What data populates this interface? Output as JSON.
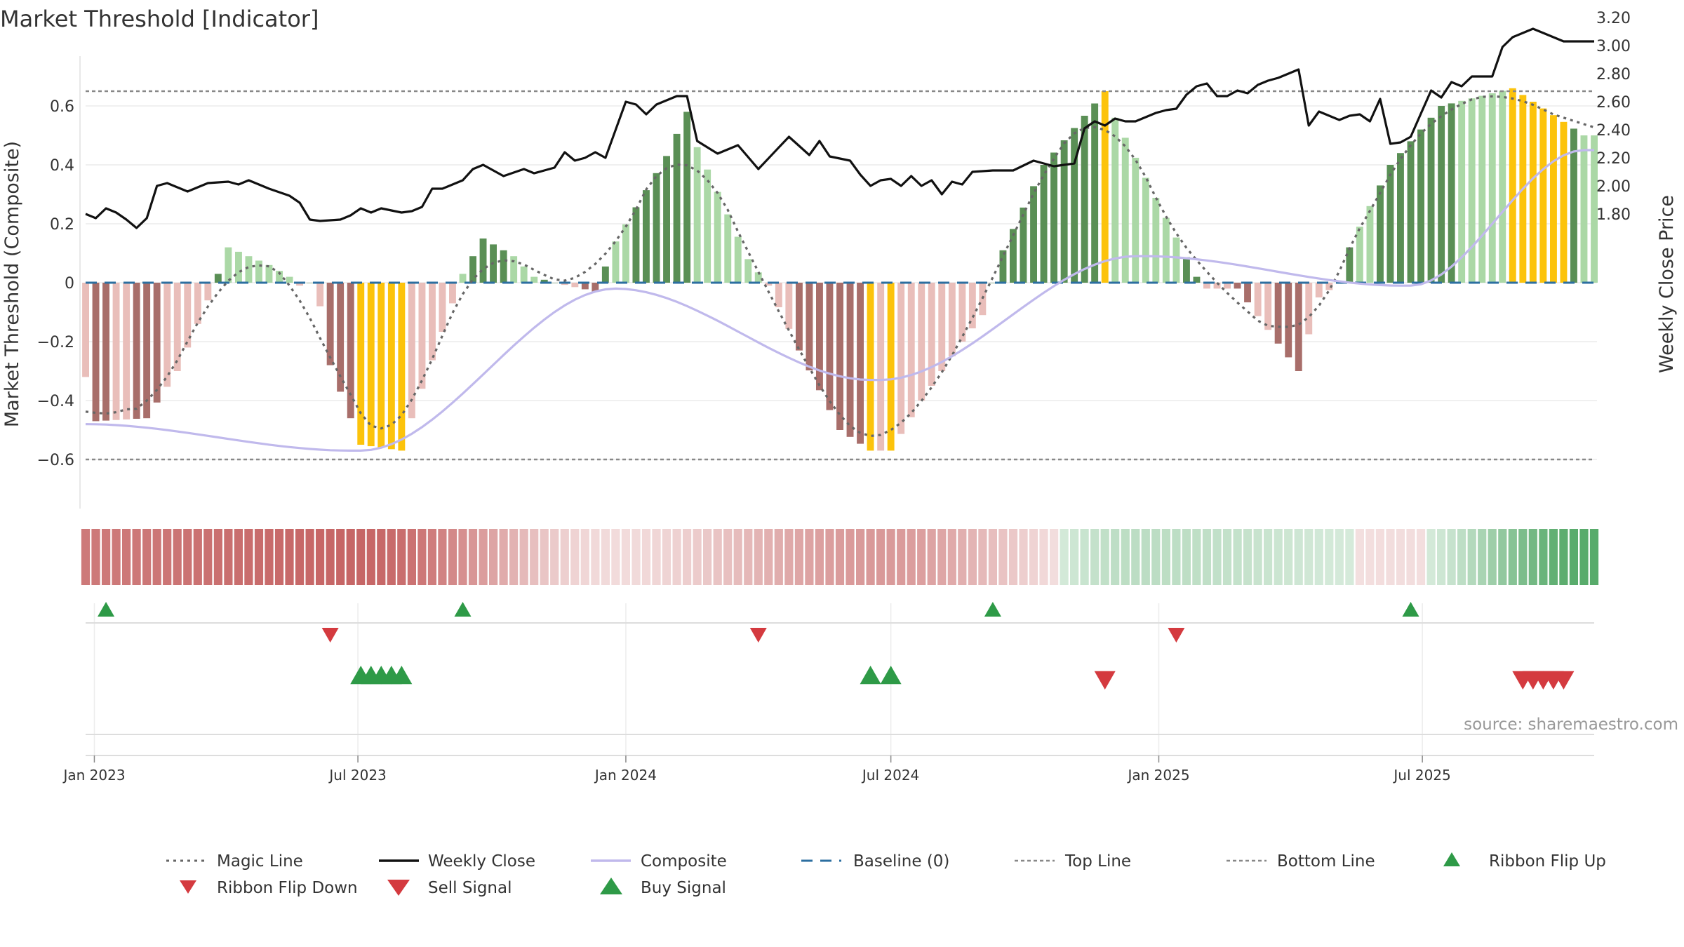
{
  "colors": {
    "dark_green": "#5a8f55",
    "light_green": "#abd8a6",
    "dark_red": "#a86e6a",
    "light_red": "#e9beba",
    "gold": "#fcc30b",
    "close_line": "#111111",
    "composite_line": "#c0b9ec",
    "magic_line": "#666666",
    "baseline": "#2c6fa0",
    "buy": "#2e9a47",
    "sell": "#d43a3f"
  },
  "chart_data": {
    "type": "bar",
    "title": "Market Threshold [Indicator]",
    "ylabel_left": "Market Threshold (Composite)",
    "ylabel_right": "Weekly Close Price",
    "ylim_left": [
      -0.77,
      0.77
    ],
    "ylim_right": [
      1.67,
      3.23
    ],
    "yticks_left": [
      {
        "v": 0.6,
        "label": "0.6"
      },
      {
        "v": 0.4,
        "label": "0.4"
      },
      {
        "v": 0.2,
        "label": "0.2"
      },
      {
        "v": 0,
        "label": "0"
      },
      {
        "v": -0.2,
        "label": "−0.2"
      },
      {
        "v": -0.4,
        "label": "−0.4"
      },
      {
        "v": -0.6,
        "label": "−0.6"
      }
    ],
    "yticks_right": [
      {
        "v": 3.2,
        "label": "3.20"
      },
      {
        "v": 3.0,
        "label": "3.00"
      },
      {
        "v": 2.8,
        "label": "2.80"
      },
      {
        "v": 2.6,
        "label": "2.60"
      },
      {
        "v": 2.4,
        "label": "2.40"
      },
      {
        "v": 2.2,
        "label": "2.20"
      },
      {
        "v": 2.0,
        "label": "2.00"
      },
      {
        "v": 1.8,
        "label": "1.80"
      }
    ],
    "xticks": [
      "Jan 2023",
      "Jul 2023",
      "Jan 2024",
      "Jul 2024",
      "Jan 2025",
      "Jul 2025"
    ],
    "top_line": 0.65,
    "bottom_line": -0.6,
    "baseline": 0,
    "composite_segments": [
      {
        "start": "2022-12-26",
        "n": 27,
        "start_value": -0.48,
        "end_value": -0.57
      },
      {
        "start": "2023-07-03",
        "n": 26,
        "start_value": -0.57,
        "end_value": -0.02
      },
      {
        "start": "2023-12-25",
        "n": 26,
        "start_value": -0.02,
        "end_value": -0.33
      },
      {
        "start": "2024-06-24",
        "n": 26,
        "start_value": -0.33,
        "end_value": 0.09
      },
      {
        "start": "2024-12-23",
        "n": 26,
        "start_value": 0.09,
        "end_value": -0.01
      },
      {
        "start": "2025-06-23",
        "n": 18,
        "start_value": -0.01,
        "end_value": 0.45
      }
    ],
    "histogram_knots": [
      {
        "date": "2022-12-26",
        "value": -0.32
      },
      {
        "date": "2023-01-02",
        "value": -0.47
      },
      {
        "date": "2023-02-06",
        "value": -0.46
      },
      {
        "date": "2023-02-27",
        "value": -0.3
      },
      {
        "date": "2023-03-20",
        "value": -0.06
      },
      {
        "date": "2023-04-03",
        "value": 0.12
      },
      {
        "date": "2023-05-01",
        "value": 0.06
      },
      {
        "date": "2023-05-15",
        "value": 0.02
      },
      {
        "date": "2023-05-22",
        "value": -0.01
      },
      {
        "date": "2023-05-29",
        "value": 0.0
      },
      {
        "date": "2023-06-05",
        "value": -0.08
      },
      {
        "date": "2023-06-12",
        "value": -0.28
      },
      {
        "date": "2023-07-03",
        "value": -0.55
      },
      {
        "date": "2023-07-31",
        "value": -0.57
      },
      {
        "date": "2023-08-07",
        "value": -0.46
      },
      {
        "date": "2023-08-14",
        "value": -0.36
      },
      {
        "date": "2023-09-04",
        "value": -0.07
      },
      {
        "date": "2023-09-11",
        "value": 0.03
      },
      {
        "date": "2023-09-25",
        "value": 0.15
      },
      {
        "date": "2023-10-16",
        "value": 0.09
      },
      {
        "date": "2023-10-30",
        "value": 0.02
      },
      {
        "date": "2023-11-13",
        "value": 0.0
      },
      {
        "date": "2023-12-11",
        "value": -0.03
      },
      {
        "date": "2023-12-25",
        "value": 0.14
      },
      {
        "date": "2024-01-29",
        "value": 0.43
      },
      {
        "date": "2024-02-12",
        "value": 0.58
      },
      {
        "date": "2024-02-19",
        "value": 0.46
      },
      {
        "date": "2024-03-25",
        "value": 0.08
      },
      {
        "date": "2024-04-08",
        "value": -0.01
      },
      {
        "date": "2024-04-29",
        "value": -0.23
      },
      {
        "date": "2024-05-27",
        "value": -0.5
      },
      {
        "date": "2024-06-17",
        "value": -0.57
      },
      {
        "date": "2024-07-01",
        "value": -0.57
      },
      {
        "date": "2024-07-22",
        "value": -0.4
      },
      {
        "date": "2024-08-19",
        "value": -0.2
      },
      {
        "date": "2024-09-02",
        "value": -0.11
      },
      {
        "date": "2024-09-09",
        "value": 0.0
      },
      {
        "date": "2024-09-16",
        "value": 0.11
      },
      {
        "date": "2024-10-14",
        "value": 0.4
      },
      {
        "date": "2024-11-25",
        "value": 0.65
      },
      {
        "date": "2024-12-02",
        "value": 0.56
      },
      {
        "date": "2025-01-06",
        "value": 0.22
      },
      {
        "date": "2025-01-27",
        "value": 0.02
      },
      {
        "date": "2025-02-03",
        "value": -0.02
      },
      {
        "date": "2025-02-24",
        "value": -0.02
      },
      {
        "date": "2025-04-07",
        "value": -0.3
      },
      {
        "date": "2025-04-21",
        "value": -0.05
      },
      {
        "date": "2025-05-05",
        "value": 0.0
      },
      {
        "date": "2025-05-12",
        "value": 0.12
      },
      {
        "date": "2025-06-09",
        "value": 0.4
      },
      {
        "date": "2025-07-14",
        "value": 0.6
      },
      {
        "date": "2025-09-01",
        "value": 0.66
      },
      {
        "date": "2025-10-20",
        "value": 0.5
      }
    ],
    "gold_bars": [
      "2023-07-03",
      "2023-07-10",
      "2023-07-17",
      "2023-07-24",
      "2023-07-31",
      "2024-06-17",
      "2024-07-01",
      "2024-11-25",
      "2025-09-01",
      "2025-09-08",
      "2025-09-15",
      "2025-09-22",
      "2025-09-29",
      "2025-10-06"
    ],
    "light_green_bars": [
      "2024-02-19",
      "2024-02-26",
      "2024-03-04",
      "2024-03-11",
      "2024-03-18",
      "2024-03-25",
      "2024-04-01",
      "2024-12-02",
      "2024-12-09",
      "2024-12-16",
      "2024-12-23",
      "2024-12-30",
      "2025-01-06",
      "2025-01-13",
      "2025-07-28",
      "2025-08-04",
      "2025-08-11",
      "2025-08-18",
      "2025-08-25",
      "2025-10-20",
      "2025-10-27",
      "2023-04-03",
      "2023-04-10",
      "2023-04-17",
      "2023-04-24",
      "2023-05-01",
      "2023-05-08",
      "2023-05-15",
      "2023-09-11",
      "2023-10-16",
      "2023-10-23",
      "2023-10-30",
      "2023-12-25",
      "2024-01-01",
      "2025-05-19",
      "2025-05-26"
    ],
    "dark_red_bars": [
      "2023-01-02",
      "2023-01-09",
      "2023-01-30",
      "2023-02-06",
      "2023-02-13",
      "2023-06-12",
      "2023-06-19",
      "2023-06-26",
      "2023-07-03",
      "2023-12-04",
      "2023-12-11",
      "2024-04-29",
      "2024-05-06",
      "2024-05-13",
      "2024-05-20",
      "2024-05-27",
      "2024-06-03",
      "2024-06-10",
      "2025-02-24",
      "2025-03-03",
      "2025-03-24",
      "2025-03-31",
      "2025-04-07"
    ],
    "weekly_close_knots": [
      {
        "date": "2022-12-26",
        "value": 1.8
      },
      {
        "date": "2023-01-02",
        "value": 1.77
      },
      {
        "date": "2023-01-09",
        "value": 1.84
      },
      {
        "date": "2023-01-16",
        "value": 1.81
      },
      {
        "date": "2023-01-23",
        "value": 1.76
      },
      {
        "date": "2023-01-30",
        "value": 1.7
      },
      {
        "date": "2023-02-06",
        "value": 1.77
      },
      {
        "date": "2023-02-13",
        "value": 2.0
      },
      {
        "date": "2023-02-20",
        "value": 2.02
      },
      {
        "date": "2023-03-06",
        "value": 1.96
      },
      {
        "date": "2023-03-20",
        "value": 2.02
      },
      {
        "date": "2023-04-03",
        "value": 2.03
      },
      {
        "date": "2023-04-10",
        "value": 2.01
      },
      {
        "date": "2023-04-17",
        "value": 2.04
      },
      {
        "date": "2023-05-01",
        "value": 1.98
      },
      {
        "date": "2023-05-15",
        "value": 1.93
      },
      {
        "date": "2023-05-22",
        "value": 1.88
      },
      {
        "date": "2023-05-29",
        "value": 1.76
      },
      {
        "date": "2023-06-05",
        "value": 1.75
      },
      {
        "date": "2023-06-19",
        "value": 1.76
      },
      {
        "date": "2023-06-26",
        "value": 1.79
      },
      {
        "date": "2023-07-03",
        "value": 1.84
      },
      {
        "date": "2023-07-10",
        "value": 1.81
      },
      {
        "date": "2023-07-17",
        "value": 1.84
      },
      {
        "date": "2023-07-31",
        "value": 1.81
      },
      {
        "date": "2023-08-07",
        "value": 1.82
      },
      {
        "date": "2023-08-14",
        "value": 1.85
      },
      {
        "date": "2023-08-21",
        "value": 1.98
      },
      {
        "date": "2023-08-28",
        "value": 1.98
      },
      {
        "date": "2023-09-11",
        "value": 2.04
      },
      {
        "date": "2023-09-18",
        "value": 2.12
      },
      {
        "date": "2023-09-25",
        "value": 2.15
      },
      {
        "date": "2023-10-09",
        "value": 2.07
      },
      {
        "date": "2023-10-23",
        "value": 2.12
      },
      {
        "date": "2023-10-30",
        "value": 2.09
      },
      {
        "date": "2023-11-13",
        "value": 2.13
      },
      {
        "date": "2023-11-20",
        "value": 2.24
      },
      {
        "date": "2023-11-27",
        "value": 2.18
      },
      {
        "date": "2023-12-04",
        "value": 2.2
      },
      {
        "date": "2023-12-11",
        "value": 2.24
      },
      {
        "date": "2023-12-18",
        "value": 2.2
      },
      {
        "date": "2024-01-01",
        "value": 2.6
      },
      {
        "date": "2024-01-08",
        "value": 2.58
      },
      {
        "date": "2024-01-15",
        "value": 2.51
      },
      {
        "date": "2024-01-22",
        "value": 2.58
      },
      {
        "date": "2024-02-05",
        "value": 2.64
      },
      {
        "date": "2024-02-12",
        "value": 2.64
      },
      {
        "date": "2024-02-19",
        "value": 2.32
      },
      {
        "date": "2024-03-04",
        "value": 2.23
      },
      {
        "date": "2024-03-18",
        "value": 2.29
      },
      {
        "date": "2024-04-01",
        "value": 2.12
      },
      {
        "date": "2024-04-22",
        "value": 2.35
      },
      {
        "date": "2024-05-06",
        "value": 2.22
      },
      {
        "date": "2024-05-13",
        "value": 2.32
      },
      {
        "date": "2024-05-20",
        "value": 2.21
      },
      {
        "date": "2024-06-03",
        "value": 2.18
      },
      {
        "date": "2024-06-10",
        "value": 2.08
      },
      {
        "date": "2024-06-17",
        "value": 2.0
      },
      {
        "date": "2024-06-24",
        "value": 2.04
      },
      {
        "date": "2024-07-01",
        "value": 2.05
      },
      {
        "date": "2024-07-08",
        "value": 2.0
      },
      {
        "date": "2024-07-15",
        "value": 2.07
      },
      {
        "date": "2024-07-22",
        "value": 2.0
      },
      {
        "date": "2024-07-29",
        "value": 2.04
      },
      {
        "date": "2024-08-05",
        "value": 1.94
      },
      {
        "date": "2024-08-12",
        "value": 2.03
      },
      {
        "date": "2024-08-19",
        "value": 2.01
      },
      {
        "date": "2024-08-26",
        "value": 2.1
      },
      {
        "date": "2024-09-09",
        "value": 2.11
      },
      {
        "date": "2024-09-23",
        "value": 2.11
      },
      {
        "date": "2024-10-07",
        "value": 2.18
      },
      {
        "date": "2024-10-21",
        "value": 2.14
      },
      {
        "date": "2024-11-04",
        "value": 2.16
      },
      {
        "date": "2024-11-11",
        "value": 2.41
      },
      {
        "date": "2024-11-18",
        "value": 2.46
      },
      {
        "date": "2024-11-25",
        "value": 2.43
      },
      {
        "date": "2024-12-02",
        "value": 2.48
      },
      {
        "date": "2024-12-09",
        "value": 2.46
      },
      {
        "date": "2024-12-16",
        "value": 2.46
      },
      {
        "date": "2024-12-30",
        "value": 2.52
      },
      {
        "date": "2025-01-06",
        "value": 2.54
      },
      {
        "date": "2025-01-13",
        "value": 2.55
      },
      {
        "date": "2025-01-20",
        "value": 2.65
      },
      {
        "date": "2025-01-27",
        "value": 2.71
      },
      {
        "date": "2025-02-03",
        "value": 2.73
      },
      {
        "date": "2025-02-10",
        "value": 2.64
      },
      {
        "date": "2025-02-17",
        "value": 2.64
      },
      {
        "date": "2025-02-24",
        "value": 2.68
      },
      {
        "date": "2025-03-03",
        "value": 2.66
      },
      {
        "date": "2025-03-10",
        "value": 2.72
      },
      {
        "date": "2025-03-17",
        "value": 2.75
      },
      {
        "date": "2025-03-24",
        "value": 2.77
      },
      {
        "date": "2025-04-07",
        "value": 2.83
      },
      {
        "date": "2025-04-14",
        "value": 2.43
      },
      {
        "date": "2025-04-21",
        "value": 2.53
      },
      {
        "date": "2025-05-05",
        "value": 2.47
      },
      {
        "date": "2025-05-12",
        "value": 2.5
      },
      {
        "date": "2025-05-19",
        "value": 2.51
      },
      {
        "date": "2025-05-26",
        "value": 2.46
      },
      {
        "date": "2025-06-02",
        "value": 2.62
      },
      {
        "date": "2025-06-09",
        "value": 2.3
      },
      {
        "date": "2025-06-16",
        "value": 2.31
      },
      {
        "date": "2025-06-23",
        "value": 2.35
      },
      {
        "date": "2025-07-07",
        "value": 2.68
      },
      {
        "date": "2025-07-14",
        "value": 2.63
      },
      {
        "date": "2025-07-21",
        "value": 2.74
      },
      {
        "date": "2025-07-28",
        "value": 2.71
      },
      {
        "date": "2025-08-04",
        "value": 2.78
      },
      {
        "date": "2025-08-11",
        "value": 2.78
      },
      {
        "date": "2025-08-18",
        "value": 2.78
      },
      {
        "date": "2025-08-25",
        "value": 2.99
      },
      {
        "date": "2025-09-01",
        "value": 3.06
      },
      {
        "date": "2025-09-15",
        "value": 3.12
      },
      {
        "date": "2025-09-22",
        "value": 3.09
      },
      {
        "date": "2025-09-29",
        "value": 3.06
      },
      {
        "date": "2025-10-06",
        "value": 3.03
      },
      {
        "date": "2025-10-27",
        "value": 3.03
      }
    ],
    "ribbon_flip_up": [
      "2023-01-09",
      "2023-09-11",
      "2024-09-09",
      "2025-06-23"
    ],
    "ribbon_flip_down": [
      "2023-06-12",
      "2024-04-01",
      "2025-01-13"
    ],
    "buy_signal": [
      "2023-07-03",
      "2023-07-10",
      "2023-07-17",
      "2023-07-24",
      "2023-07-31",
      "2024-06-17",
      "2024-07-01"
    ],
    "sell_signal": [
      "2024-11-25",
      "2025-09-08",
      "2025-09-15",
      "2025-09-22",
      "2025-09-29",
      "2025-10-06"
    ],
    "legend": {
      "magic_line": "Magic Line",
      "weekly_close": "Weekly Close",
      "composite": "Composite",
      "baseline": "Baseline (0)",
      "top_line": "Top Line",
      "bottom_line": "Bottom Line",
      "ribbon_flip_up": "Ribbon Flip Up",
      "ribbon_flip_down": "Ribbon Flip Down",
      "sell_signal": "Sell Signal",
      "buy_signal": "Buy Signal"
    },
    "legend_placement": "bottom"
  },
  "source": "source: sharemaestro.com"
}
